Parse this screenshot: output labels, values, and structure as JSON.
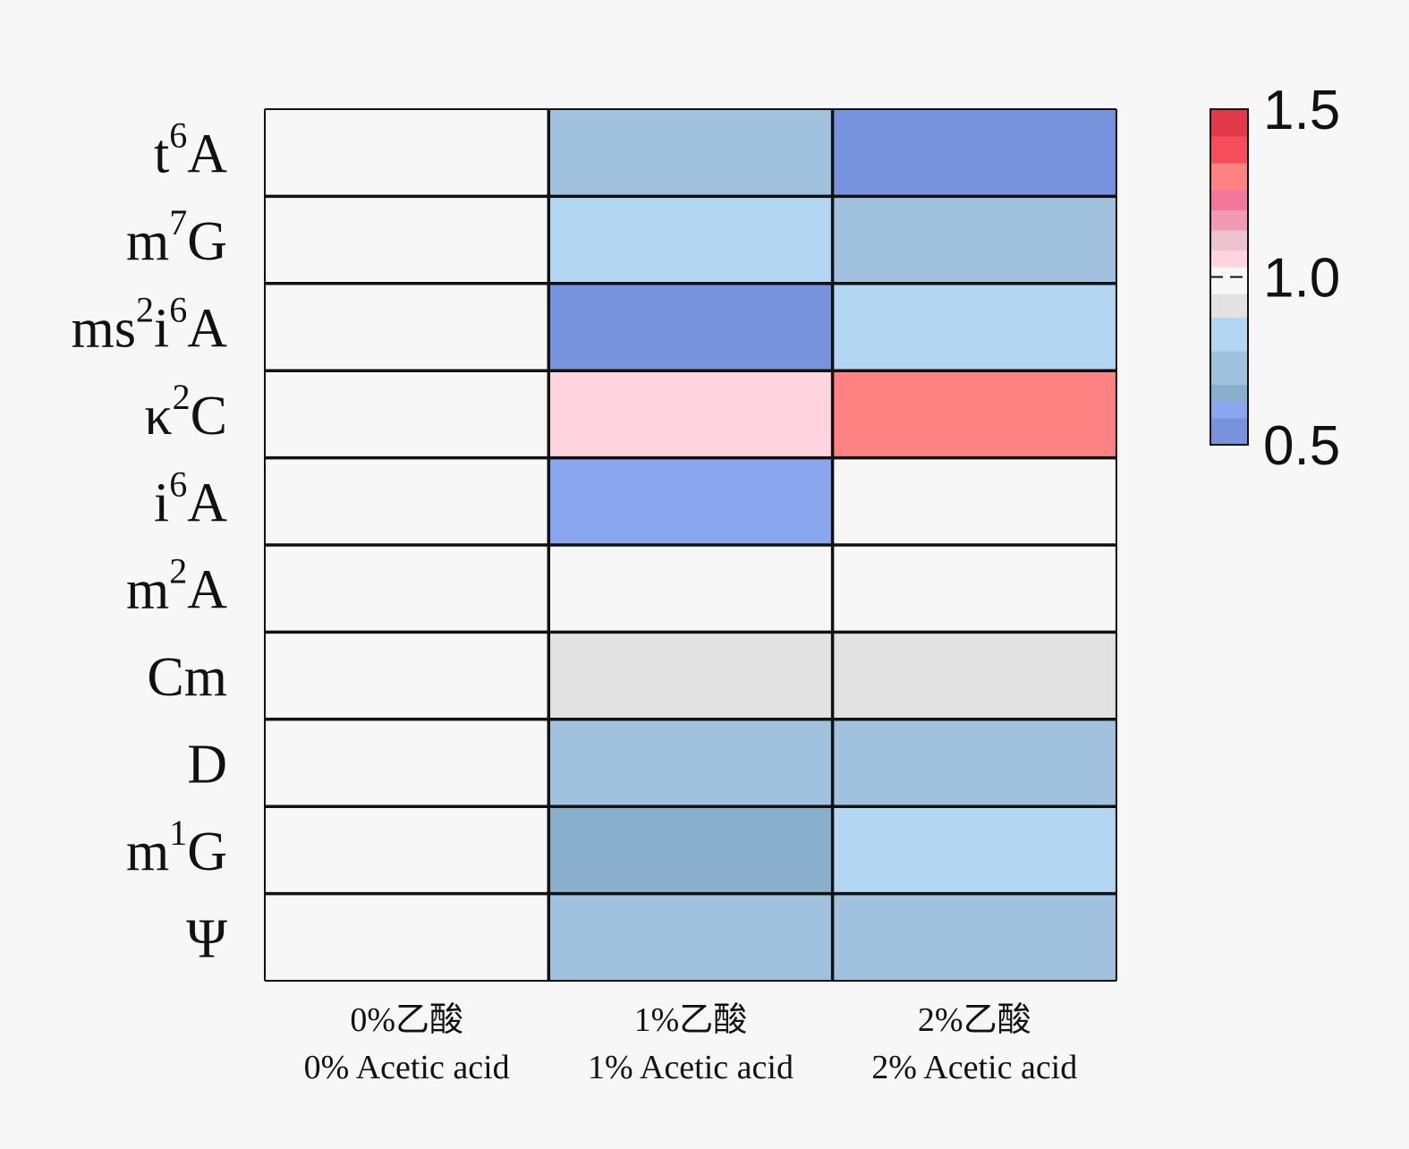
{
  "chart_data": {
    "type": "heatmap",
    "title": "",
    "rows": [
      {
        "label": "t6A",
        "base": "t",
        "sup": "6",
        "tail": "A"
      },
      {
        "label": "m7G",
        "base": "m",
        "sup": "7",
        "tail": "G"
      },
      {
        "label": "ms2i6A",
        "parts": [
          [
            "ms",
            ""
          ],
          [
            "2",
            "sup"
          ],
          [
            "i",
            ""
          ],
          [
            "6",
            "sup"
          ],
          [
            "A",
            ""
          ]
        ]
      },
      {
        "label": "κ2C",
        "base": "κ",
        "sup": "2",
        "tail": "C"
      },
      {
        "label": "i6A",
        "base": "i",
        "sup": "6",
        "tail": "A"
      },
      {
        "label": "m2A",
        "base": "m",
        "sup": "2",
        "tail": "A"
      },
      {
        "label": "Cm",
        "base": "Cm",
        "sup": "",
        "tail": ""
      },
      {
        "label": "D",
        "base": "D",
        "sup": "",
        "tail": ""
      },
      {
        "label": "m1G",
        "base": "m",
        "sup": "1",
        "tail": "G"
      },
      {
        "label": "Ψ",
        "base": "Ψ",
        "sup": "",
        "tail": ""
      }
    ],
    "columns": [
      {
        "line1": "0%乙酸",
        "line2": "0% Acetic acid"
      },
      {
        "line1": "1%乙酸",
        "line2": "1% Acetic acid"
      },
      {
        "line1": "2%乙酸",
        "line2": "2% Acetic acid"
      }
    ],
    "values": [
      [
        1.0,
        0.7,
        0.55
      ],
      [
        1.0,
        0.8,
        0.7
      ],
      [
        1.0,
        0.55,
        0.8
      ],
      [
        1.0,
        1.05,
        1.3
      ],
      [
        1.0,
        0.6,
        1.0
      ],
      [
        1.0,
        1.0,
        1.0
      ],
      [
        1.0,
        0.9,
        0.9
      ],
      [
        1.0,
        0.7,
        0.7
      ],
      [
        1.0,
        0.65,
        0.8
      ],
      [
        1.0,
        0.7,
        0.7
      ]
    ],
    "colorbar": {
      "range": [
        0.5,
        1.5
      ],
      "ticks": [
        "1.5",
        "1.0",
        "0.5"
      ],
      "tick_values": [
        1.5,
        1.0,
        0.5
      ],
      "reference_line": 1.0,
      "bins": [
        {
          "from": 0.5,
          "to": 0.58,
          "color": "#7893dd"
        },
        {
          "from": 0.58,
          "to": 0.63,
          "color": "#8aa6ef"
        },
        {
          "from": 0.63,
          "to": 0.68,
          "color": "#8aafcd"
        },
        {
          "from": 0.68,
          "to": 0.78,
          "color": "#a0c2df"
        },
        {
          "from": 0.78,
          "to": 0.88,
          "color": "#b3d7f2"
        },
        {
          "from": 0.88,
          "to": 0.95,
          "color": "#e2e2e2"
        },
        {
          "from": 0.95,
          "to": 1.03,
          "color": "#f7f7f7"
        },
        {
          "from": 1.03,
          "to": 1.08,
          "color": "#ffd4e0"
        },
        {
          "from": 1.08,
          "to": 1.14,
          "color": "#ecc3d0"
        },
        {
          "from": 1.14,
          "to": 1.2,
          "color": "#f29ab4"
        },
        {
          "from": 1.2,
          "to": 1.26,
          "color": "#f2759a"
        },
        {
          "from": 1.26,
          "to": 1.34,
          "color": "#ff8282"
        },
        {
          "from": 1.34,
          "to": 1.42,
          "color": "#f64c5c"
        },
        {
          "from": 1.42,
          "to": 1.5,
          "color": "#e23a4a"
        }
      ]
    },
    "xlabel": "",
    "ylabel": "",
    "legend": "right"
  }
}
